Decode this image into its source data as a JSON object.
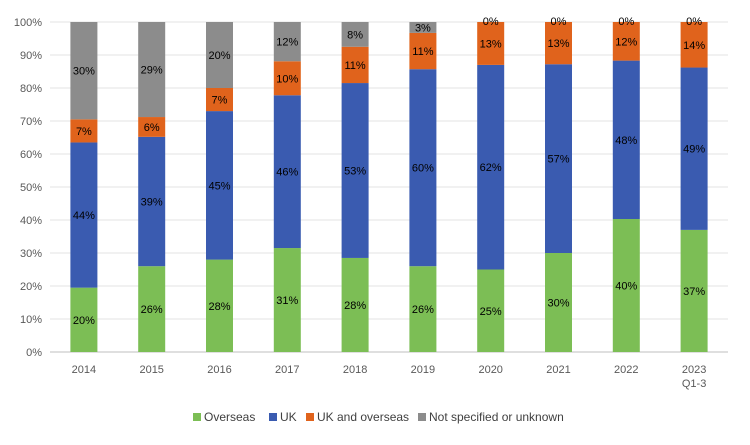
{
  "chart_data": {
    "type": "bar",
    "stacked": true,
    "title": "",
    "xlabel": "",
    "ylabel": "",
    "ylim": [
      0,
      100
    ],
    "yticks": [
      "0%",
      "10%",
      "20%",
      "30%",
      "40%",
      "50%",
      "60%",
      "70%",
      "80%",
      "90%",
      "100%"
    ],
    "grid": true,
    "legend_position": "bottom",
    "categories": [
      [
        "2014"
      ],
      [
        "2015"
      ],
      [
        "2016"
      ],
      [
        "2017"
      ],
      [
        "2018"
      ],
      [
        "2019"
      ],
      [
        "2020"
      ],
      [
        "2021"
      ],
      [
        "2022"
      ],
      [
        "2023",
        "Q1-3"
      ]
    ],
    "series": [
      {
        "name": "Overseas",
        "color": "#7cbe55",
        "values": [
          19.5,
          26,
          28,
          31.5,
          28.5,
          26,
          25,
          30,
          40.3,
          37
        ],
        "labels": [
          "20%",
          "26%",
          "28%",
          "31%",
          "28%",
          "26%",
          "25%",
          "30%",
          "40%",
          "37%"
        ]
      },
      {
        "name": "UK",
        "color": "#3a5bb0",
        "values": [
          44,
          39.2,
          45,
          46.3,
          53,
          59.7,
          62,
          57.2,
          48,
          49.2
        ],
        "labels": [
          "44%",
          "39%",
          "45%",
          "46%",
          "53%",
          "60%",
          "62%",
          "57%",
          "48%",
          "49%"
        ]
      },
      {
        "name": "UK and overseas",
        "color": "#e0631c",
        "values": [
          7,
          6,
          7,
          10.3,
          11,
          11,
          13,
          12.8,
          11.7,
          13.8
        ],
        "labels": [
          "7%",
          "6%",
          "7%",
          "10%",
          "11%",
          "11%",
          "13%",
          "13%",
          "12%",
          "14%"
        ]
      },
      {
        "name": "Not specified or unknown",
        "color": "#8c8c8c",
        "values": [
          29.5,
          28.8,
          20,
          11.9,
          7.5,
          3.3,
          0,
          0,
          0,
          0
        ],
        "labels": [
          "30%",
          "29%",
          "20%",
          "12%",
          "8%",
          "3%",
          "0%",
          "0%",
          "0%",
          "0%"
        ]
      }
    ]
  }
}
